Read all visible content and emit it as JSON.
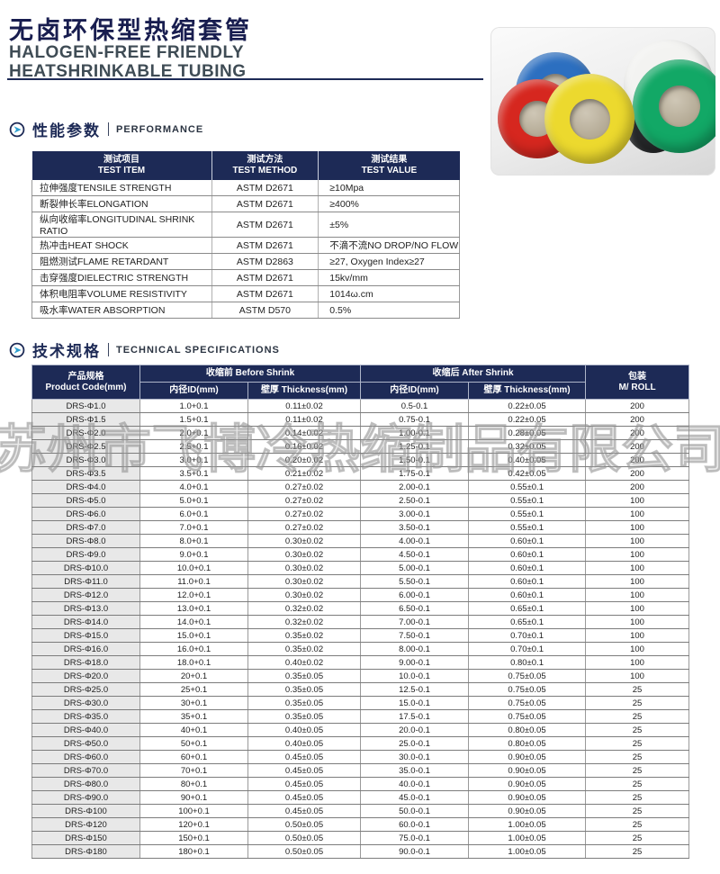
{
  "header": {
    "title_cn": "无卤环保型热缩套管",
    "subtitle_line1": "HALOGEN-FREE FRIENDLY",
    "subtitle_line2": "HEATSHRINKABLE TUBING"
  },
  "watermark_text": "苏州市飞博冷热缩制品有限公司",
  "colors": {
    "navy_header": "#1d2a56",
    "title_navy": "#181d4f",
    "accent_arrow_blue": "#2e9fd0",
    "code_column_gray": "#e8e8e8"
  },
  "sections": {
    "performance": {
      "title_cn": "性能参数",
      "title_en": "PERFORMANCE"
    },
    "specs": {
      "title_cn": "技术规格",
      "title_en": "TECHNICAL SPECIFICATIONS"
    }
  },
  "performance_table": {
    "headers": [
      {
        "cn": "测试项目",
        "en": "TEST ITEM"
      },
      {
        "cn": "测试方法",
        "en": "TEST METHOD"
      },
      {
        "cn": "测试结果",
        "en": "TEST VALUE"
      }
    ],
    "rows": [
      [
        "拉伸强度TENSILE STRENGTH",
        "ASTM D2671",
        "≥10Mpa"
      ],
      [
        "断裂伸长率ELONGATION",
        "ASTM D2671",
        "≥400%"
      ],
      [
        "纵向收缩率LONGITUDINAL SHRINK RATIO",
        "ASTM D2671",
        "±5%"
      ],
      [
        "热冲击HEAT SHOCK",
        "ASTM D2671",
        "不滴不流NO DROP/NO FLOW"
      ],
      [
        "阻燃测试FLAME RETARDANT",
        "ASTM D2863",
        "≥27, Oxygen Index≥27"
      ],
      [
        "击穿强度DIELECTRIC STRENGTH",
        "ASTM D2671",
        "15kv/mm"
      ],
      [
        "体积电阻率VOLUME RESISTIVITY",
        "ASTM D2671",
        "1014ω.cm"
      ],
      [
        "吸水率WATER ABSORPTION",
        "ASTM D570",
        "0.5%"
      ]
    ]
  },
  "spec_table": {
    "header": {
      "product_code_cn": "产品规格",
      "product_code_en": "Product Code(mm)",
      "before_shrink": "收缩前 Before Shrink",
      "after_shrink": "收缩后 After Shrink",
      "id_label": "内径ID(mm)",
      "thickness_label": "壁厚 Thickness(mm)",
      "package_cn": "包装",
      "package_en": "M/ ROLL"
    },
    "rows": [
      [
        "DRS-Φ1.0",
        "1.0+0.1",
        "0.11±0.02",
        "0.5-0.1",
        "0.22±0.05",
        "200"
      ],
      [
        "DRS-Φ1.5",
        "1.5+0.1",
        "0.11±0.02",
        "0.75-0.1",
        "0.22±0.05",
        "200"
      ],
      [
        "DRS-Φ2.0",
        "2.0+0.1",
        "0.14±0.02",
        "1.00-0.1",
        "0.28±0.05",
        "200"
      ],
      [
        "DRS-Φ2.5",
        "2.5+0.1",
        "0.16±0.02",
        "1.25-0.1",
        "0.32±0.05",
        "200"
      ],
      [
        "DRS-Φ3.0",
        "3.0+0.1",
        "0.20±0.02",
        "1.50-0.1",
        "0.40±0.05",
        "200"
      ],
      [
        "DRS-Φ3.5",
        "3.5+0.1",
        "0.21±0.02",
        "1.75-0.1",
        "0.42±0.05",
        "200"
      ],
      [
        "DRS-Φ4.0",
        "4.0+0.1",
        "0.27±0.02",
        "2.00-0.1",
        "0.55±0.1",
        "200"
      ],
      [
        "DRS-Φ5.0",
        "5.0+0.1",
        "0.27±0.02",
        "2.50-0.1",
        "0.55±0.1",
        "100"
      ],
      [
        "DRS-Φ6.0",
        "6.0+0.1",
        "0.27±0.02",
        "3.00-0.1",
        "0.55±0.1",
        "100"
      ],
      [
        "DRS-Φ7.0",
        "7.0+0.1",
        "0.27±0.02",
        "3.50-0.1",
        "0.55±0.1",
        "100"
      ],
      [
        "DRS-Φ8.0",
        "8.0+0.1",
        "0.30±0.02",
        "4.00-0.1",
        "0.60±0.1",
        "100"
      ],
      [
        "DRS-Φ9.0",
        "9.0+0.1",
        "0.30±0.02",
        "4.50-0.1",
        "0.60±0.1",
        "100"
      ],
      [
        "DRS-Φ10.0",
        "10.0+0.1",
        "0.30±0.02",
        "5.00-0.1",
        "0.60±0.1",
        "100"
      ],
      [
        "DRS-Φ11.0",
        "11.0+0.1",
        "0.30±0.02",
        "5.50-0.1",
        "0.60±0.1",
        "100"
      ],
      [
        "DRS-Φ12.0",
        "12.0+0.1",
        "0.30±0.02",
        "6.00-0.1",
        "0.60±0.1",
        "100"
      ],
      [
        "DRS-Φ13.0",
        "13.0+0.1",
        "0.32±0.02",
        "6.50-0.1",
        "0.65±0.1",
        "100"
      ],
      [
        "DRS-Φ14.0",
        "14.0+0.1",
        "0.32±0.02",
        "7.00-0.1",
        "0.65±0.1",
        "100"
      ],
      [
        "DRS-Φ15.0",
        "15.0+0.1",
        "0.35±0.02",
        "7.50-0.1",
        "0.70±0.1",
        "100"
      ],
      [
        "DRS-Φ16.0",
        "16.0+0.1",
        "0.35±0.02",
        "8.00-0.1",
        "0.70±0.1",
        "100"
      ],
      [
        "DRS-Φ18.0",
        "18.0+0.1",
        "0.40±0.02",
        "9.00-0.1",
        "0.80±0.1",
        "100"
      ],
      [
        "DRS-Φ20.0",
        "20+0.1",
        "0.35±0.05",
        "10.0-0.1",
        "0.75±0.05",
        "100"
      ],
      [
        "DRS-Φ25.0",
        "25+0.1",
        "0.35±0.05",
        "12.5-0.1",
        "0.75±0.05",
        "25"
      ],
      [
        "DRS-Φ30.0",
        "30+0.1",
        "0.35±0.05",
        "15.0-0.1",
        "0.75±0.05",
        "25"
      ],
      [
        "DRS-Φ35.0",
        "35+0.1",
        "0.35±0.05",
        "17.5-0.1",
        "0.75±0.05",
        "25"
      ],
      [
        "DRS-Φ40.0",
        "40+0.1",
        "0.40±0.05",
        "20.0-0.1",
        "0.80±0.05",
        "25"
      ],
      [
        "DRS-Φ50.0",
        "50+0.1",
        "0.40±0.05",
        "25.0-0.1",
        "0.80±0.05",
        "25"
      ],
      [
        "DRS-Φ60.0",
        "60+0.1",
        "0.45±0.05",
        "30.0-0.1",
        "0.90±0.05",
        "25"
      ],
      [
        "DRS-Φ70.0",
        "70+0.1",
        "0.45±0.05",
        "35.0-0.1",
        "0.90±0.05",
        "25"
      ],
      [
        "DRS-Φ80.0",
        "80+0.1",
        "0.45±0.05",
        "40.0-0.1",
        "0.90±0.05",
        "25"
      ],
      [
        "DRS-Φ90.0",
        "90+0.1",
        "0.45±0.05",
        "45.0-0.1",
        "0.90±0.05",
        "25"
      ],
      [
        "DRS-Φ100",
        "100+0.1",
        "0.45±0.05",
        "50.0-0.1",
        "0.90±0.05",
        "25"
      ],
      [
        "DRS-Φ120",
        "120+0.1",
        "0.50±0.05",
        "60.0-0.1",
        "1.00±0.05",
        "25"
      ],
      [
        "DRS-Φ150",
        "150+0.1",
        "0.50±0.05",
        "75.0-0.1",
        "1.00±0.05",
        "25"
      ],
      [
        "DRS-Φ180",
        "180+0.1",
        "0.50±0.05",
        "90.0-0.1",
        "1.00±0.05",
        "25"
      ]
    ]
  },
  "product_image": {
    "rolls": [
      {
        "name": "white",
        "color": "#f3f3f1"
      },
      {
        "name": "blue",
        "color": "#2c6fc0"
      },
      {
        "name": "black",
        "color": "#26282a"
      },
      {
        "name": "red",
        "color": "#d6271f"
      },
      {
        "name": "green",
        "color": "#12a866"
      },
      {
        "name": "yellow",
        "color": "#ecd92e"
      }
    ]
  }
}
